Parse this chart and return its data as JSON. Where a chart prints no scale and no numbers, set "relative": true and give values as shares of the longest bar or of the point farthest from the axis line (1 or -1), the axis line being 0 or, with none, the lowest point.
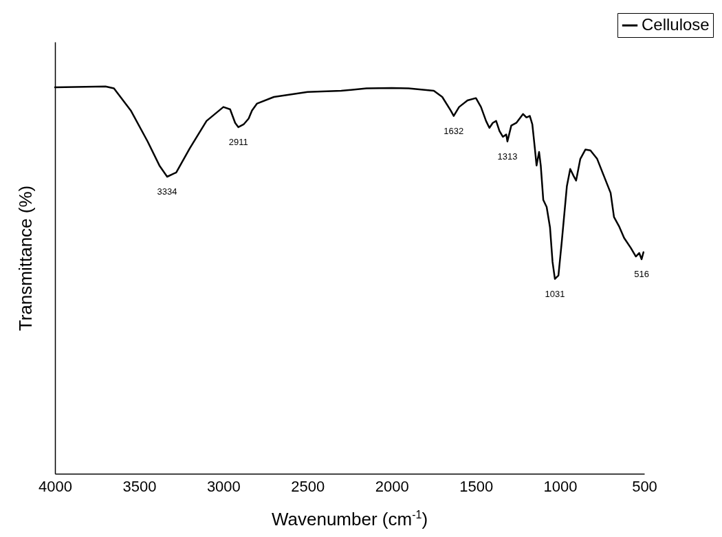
{
  "chart_data": {
    "type": "line",
    "xlabel": "Wavenumber (cm$^{-1}$)",
    "ylabel": "Transmittance (%)",
    "relative": true,
    "xlim": [
      4000,
      500
    ],
    "xticks": [
      4000,
      3500,
      3000,
      2500,
      2000,
      1500,
      1000,
      500
    ],
    "tick_labels": "x",
    "legend": "top right",
    "x": [
      4000,
      3700,
      3650,
      3550,
      3450,
      3380,
      3334,
      3280,
      3200,
      3100,
      3000,
      2960,
      2930,
      2911,
      2880,
      2850,
      2830,
      2800,
      2700,
      2500,
      2300,
      2150,
      2000,
      1900,
      1750,
      1700,
      1650,
      1632,
      1600,
      1550,
      1500,
      1470,
      1440,
      1420,
      1400,
      1380,
      1360,
      1340,
      1320,
      1313,
      1290,
      1260,
      1220,
      1200,
      1180,
      1165,
      1150,
      1140,
      1125,
      1115,
      1100,
      1080,
      1060,
      1045,
      1031,
      1010,
      990,
      960,
      940,
      920,
      905,
      880,
      850,
      820,
      780,
      740,
      700,
      680,
      650,
      620,
      580,
      550,
      530,
      516,
      505
    ],
    "series": [
      {
        "name": "Cellulose",
        "color": "#000000",
        "values": [
          0.998,
          1,
          0.995,
          0.938,
          0.858,
          0.796,
          0.767,
          0.778,
          0.84,
          0.911,
          0.947,
          0.941,
          0.906,
          0.895,
          0.902,
          0.917,
          0.938,
          0.956,
          0.973,
          0.986,
          0.989,
          0.995,
          0.996,
          0.995,
          0.989,
          0.973,
          0.938,
          0.924,
          0.947,
          0.964,
          0.97,
          0.947,
          0.911,
          0.893,
          0.906,
          0.911,
          0.885,
          0.87,
          0.876,
          0.858,
          0.899,
          0.906,
          0.929,
          0.92,
          0.924,
          0.902,
          0.84,
          0.796,
          0.831,
          0.796,
          0.707,
          0.689,
          0.636,
          0.547,
          0.503,
          0.512,
          0.6,
          0.742,
          0.787,
          0.769,
          0.757,
          0.813,
          0.837,
          0.835,
          0.813,
          0.769,
          0.725,
          0.663,
          0.639,
          0.609,
          0.583,
          0.561,
          0.57,
          0.554,
          0.572
        ]
      }
    ],
    "annotations": [
      {
        "text": "3334",
        "x": 3334,
        "y": 0.767
      },
      {
        "text": "2911",
        "x": 2911,
        "y": 0.895
      },
      {
        "text": "1632",
        "x": 1632,
        "y": 0.924
      },
      {
        "text": "1313",
        "x": 1313,
        "y": 0.858
      },
      {
        "text": "1031",
        "x": 1031,
        "y": 0.503
      },
      {
        "text": "516",
        "x": 516,
        "y": 0.554
      }
    ]
  }
}
